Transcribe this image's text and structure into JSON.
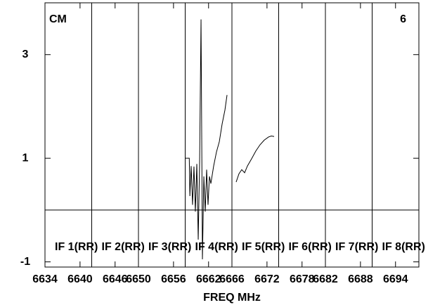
{
  "chart_data": {
    "type": "line",
    "title": "CM",
    "panel_label": "6",
    "xlabel": "FREQ MHz",
    "band_labels": [
      "IF 1(RR)",
      "IF 2(RR)",
      "IF 3(RR)",
      "IF 4(RR)",
      "IF 5(RR)",
      "IF 6(RR)",
      "IF 7(RR)",
      "IF 8(RR)"
    ],
    "xlim": [
      6634,
      6698
    ],
    "ylim": [
      -1.1,
      4
    ],
    "xticks": [
      6634,
      6640,
      6646,
      6650,
      6656,
      6662,
      6666,
      6672,
      6678,
      6682,
      6688,
      6694
    ],
    "yticks": [
      -1,
      1,
      3
    ],
    "zero_line": true,
    "band_grid": true,
    "color": "#000000",
    "x": [
      6657.94,
      6658.7,
      6658.8,
      6659.02,
      6659.26,
      6659.5,
      6659.74,
      6659.99,
      6660.23,
      6660.47,
      6660.71,
      6660.95,
      6661.19,
      6661.43,
      6661.67,
      6661.91,
      6662.15,
      6662.39,
      6662.87,
      6663.35,
      6663.84,
      6664.32,
      6664.8,
      6665.16,
      6666.0,
      6666.72,
      6667.2,
      6667.68,
      6668.17,
      6668.65,
      6669.37,
      6670.09,
      6670.81,
      6671.53,
      6672.26,
      6672.74,
      6673.22
    ],
    "values": [
      1.0,
      1.0,
      0.27,
      0.85,
      0.1,
      0.84,
      -0.03,
      0.89,
      -0.57,
      0.95,
      3.68,
      -0.95,
      0.65,
      -0.03,
      0.78,
      0.1,
      0.65,
      0.51,
      0.85,
      1.12,
      1.32,
      1.66,
      1.93,
      2.22,
      null,
      0.54,
      0.7,
      0.78,
      0.72,
      0.85,
      0.99,
      1.14,
      1.26,
      1.35,
      1.41,
      1.43,
      1.42
    ]
  }
}
